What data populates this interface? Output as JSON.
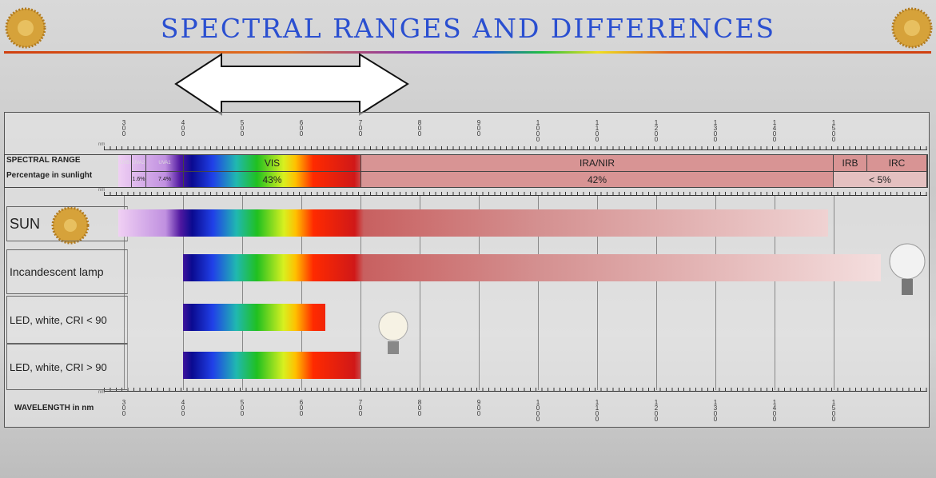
{
  "chart_data": {
    "type": "range",
    "title": "SPECTRAL RANGES AND DIFFERENCES",
    "categories": [
      "SUN",
      "Incandescent lamp",
      "LED, white, CRI < 90",
      "LED, white, CRI > 90"
    ],
    "starts": [
      290,
      400,
      400,
      400
    ],
    "ends": [
      1490,
      1580,
      640,
      700
    ],
    "xlim": [
      300,
      1500
    ],
    "xticks": [
      300,
      400,
      500,
      600,
      700,
      800,
      900,
      1000,
      1100,
      1200,
      1300,
      1400,
      1500
    ],
    "x_label": "WAVELENGTH in nm",
    "unit": "nm"
  },
  "spectral_table": {
    "row_labels": [
      "SPECTRAL RANGE",
      "Percentage in sunlight"
    ],
    "ranges": [
      "UVB",
      "UVA2",
      "UVA1",
      "VIS",
      "IRA/NIR",
      "IRB",
      "IRC"
    ],
    "percentages": [
      "1.6%",
      "7.4%",
      "43%",
      "42%",
      "< 5%"
    ]
  }
}
